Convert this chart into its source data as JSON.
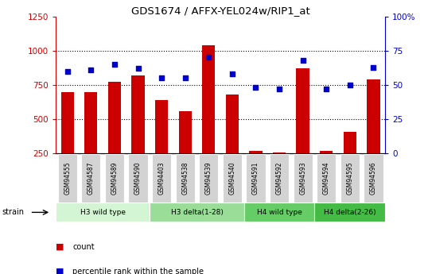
{
  "title": "GDS1674 / AFFX-YEL024w/RIP1_at",
  "samples": [
    "GSM94555",
    "GSM94587",
    "GSM94589",
    "GSM94590",
    "GSM94403",
    "GSM94538",
    "GSM94539",
    "GSM94540",
    "GSM94591",
    "GSM94592",
    "GSM94593",
    "GSM94594",
    "GSM94595",
    "GSM94596"
  ],
  "counts": [
    700,
    695,
    775,
    820,
    640,
    560,
    1040,
    680,
    270,
    255,
    870,
    270,
    410,
    790
  ],
  "percentiles": [
    60,
    61,
    65,
    62,
    55,
    55,
    70,
    58,
    48,
    47,
    68,
    47,
    50,
    63
  ],
  "groups": [
    {
      "label": "H3 wild type",
      "start": 0,
      "end": 4,
      "color": "#d4f5d4"
    },
    {
      "label": "H3 delta(1-28)",
      "start": 4,
      "end": 8,
      "color": "#99dd99"
    },
    {
      "label": "H4 wild type",
      "start": 8,
      "end": 11,
      "color": "#66cc66"
    },
    {
      "label": "H4 delta(2-26)",
      "start": 11,
      "end": 14,
      "color": "#44bb44"
    }
  ],
  "bar_color": "#cc0000",
  "dot_color": "#0000cc",
  "left_ylim": [
    250,
    1250
  ],
  "right_ylim": [
    0,
    100
  ],
  "left_yticks": [
    250,
    500,
    750,
    1000,
    1250
  ],
  "right_yticks": [
    0,
    25,
    50,
    75,
    100
  ],
  "right_yticklabels": [
    "0",
    "25",
    "50",
    "75",
    "100%"
  ],
  "grid_values": [
    500,
    750,
    1000
  ],
  "bar_color_hex": "#cc0000",
  "dot_color_hex": "#0000cc",
  "left_tick_color": "#cc0000",
  "right_tick_color": "#0000cc",
  "xlabel_bg": "#d3d3d3",
  "plot_bg": "#ffffff"
}
